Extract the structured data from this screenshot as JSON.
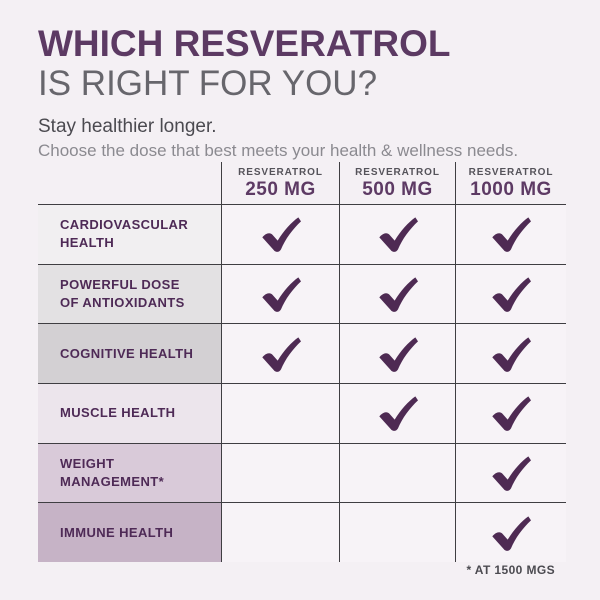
{
  "page": {
    "title_line1": "WHICH RESVERATROL",
    "title_line2": "IS RIGHT FOR YOU?",
    "subtitle_bold": "Stay healthier longer.",
    "subtitle": "Choose the dose that best meets your health & wellness needs.",
    "footnote": "* AT 1500 MGS"
  },
  "colors": {
    "page_background": "#f4f0f4",
    "title_purple": "#5c3a63",
    "title_gray": "#67666c",
    "row_label_purple": "#4e2a56",
    "check_purple": "#4e2a53",
    "grid_line": "#3f3e42",
    "check_cell_bg": "#f7f3f7"
  },
  "table": {
    "columns": [
      {
        "brand": "RESVERATROL",
        "dose": "250 MG"
      },
      {
        "brand": "RESVERATROL",
        "dose": "500 MG"
      },
      {
        "brand": "RESVERATROL",
        "dose": "1000 MG"
      }
    ],
    "rows": [
      {
        "label": "CARDIOVASCULAR\nHEALTH",
        "bg": "#f1eff1",
        "checks": [
          true,
          true,
          true
        ]
      },
      {
        "label": "POWERFUL DOSE\nOF ANTIOXIDANTS",
        "bg": "#e3e1e3",
        "checks": [
          true,
          true,
          true
        ]
      },
      {
        "label": "COGNITIVE HEALTH",
        "bg": "#d3d0d3",
        "checks": [
          true,
          true,
          true
        ]
      },
      {
        "label": "MUSCLE HEALTH",
        "bg": "#ece5ec",
        "checks": [
          false,
          true,
          true
        ]
      },
      {
        "label": "WEIGHT MANAGEMENT*",
        "bg": "#d9cad9",
        "checks": [
          false,
          false,
          true
        ]
      },
      {
        "label": "IMMUNE HEALTH",
        "bg": "#c6b3c6",
        "checks": [
          false,
          false,
          true
        ]
      }
    ]
  },
  "chart_data": {
    "type": "table",
    "title": "WHICH RESVERATROL IS RIGHT FOR YOU?",
    "subtitle": "Stay healthier longer. Choose the dose that best meets your health & wellness needs.",
    "columns": [
      "RESVERATROL 250 MG",
      "RESVERATROL 500 MG",
      "RESVERATROL 1000 MG"
    ],
    "rows": [
      "CARDIOVASCULAR HEALTH",
      "POWERFUL DOSE OF ANTIOXIDANTS",
      "COGNITIVE HEALTH",
      "MUSCLE HEALTH",
      "WEIGHT MANAGEMENT*",
      "IMMUNE HEALTH"
    ],
    "matrix": [
      [
        1,
        1,
        1
      ],
      [
        1,
        1,
        1
      ],
      [
        1,
        1,
        1
      ],
      [
        0,
        1,
        1
      ],
      [
        0,
        0,
        1
      ],
      [
        0,
        0,
        1
      ]
    ],
    "footnote": "* AT 1500 MGS"
  }
}
